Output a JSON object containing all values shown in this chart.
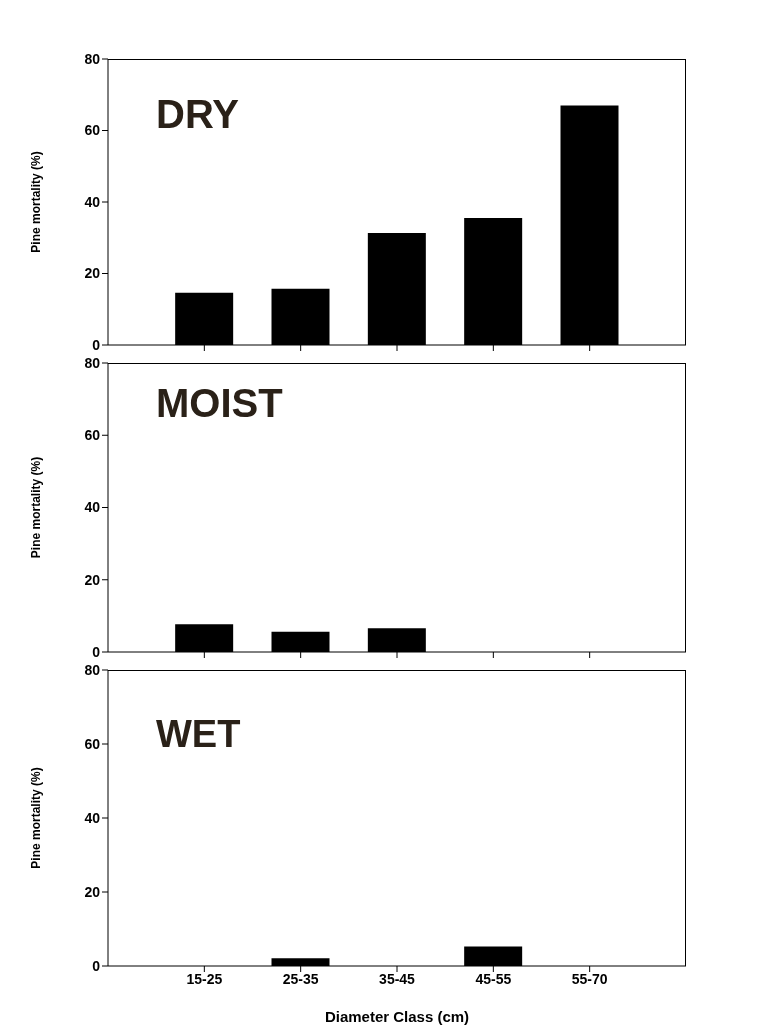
{
  "chart_data": [
    {
      "type": "bar",
      "title": "DRY",
      "ylabel": "Pine mortality (%)",
      "categories": [
        null,
        null,
        null,
        null,
        null
      ],
      "values": [
        14.6,
        15.7,
        31.3,
        35.5,
        67
      ],
      "color": "#000000",
      "ylim": [
        0,
        80
      ],
      "yticks": [
        0,
        20,
        40,
        60,
        80
      ]
    },
    {
      "type": "bar",
      "title": "MOIST",
      "ylabel": "Pine mortality (%)",
      "categories": [
        null,
        null,
        null,
        null,
        null
      ],
      "values": [
        7.7,
        5.6,
        6.6,
        0,
        0
      ],
      "color": "#000000",
      "ylim": [
        0,
        80
      ],
      "yticks": [
        0,
        20,
        40,
        60,
        80
      ]
    },
    {
      "type": "bar",
      "title": "WET",
      "ylabel": "Pine mortality (%)",
      "xlabel": "Diameter Class (cm)",
      "categories": [
        "15-25",
        "25-35",
        "35-45",
        "45-55",
        "55-70"
      ],
      "values": [
        0,
        2.1,
        0,
        5.3,
        0
      ],
      "color": "#000000",
      "ylim": [
        0,
        80
      ],
      "yticks": [
        0,
        20,
        40,
        60,
        80
      ]
    }
  ]
}
